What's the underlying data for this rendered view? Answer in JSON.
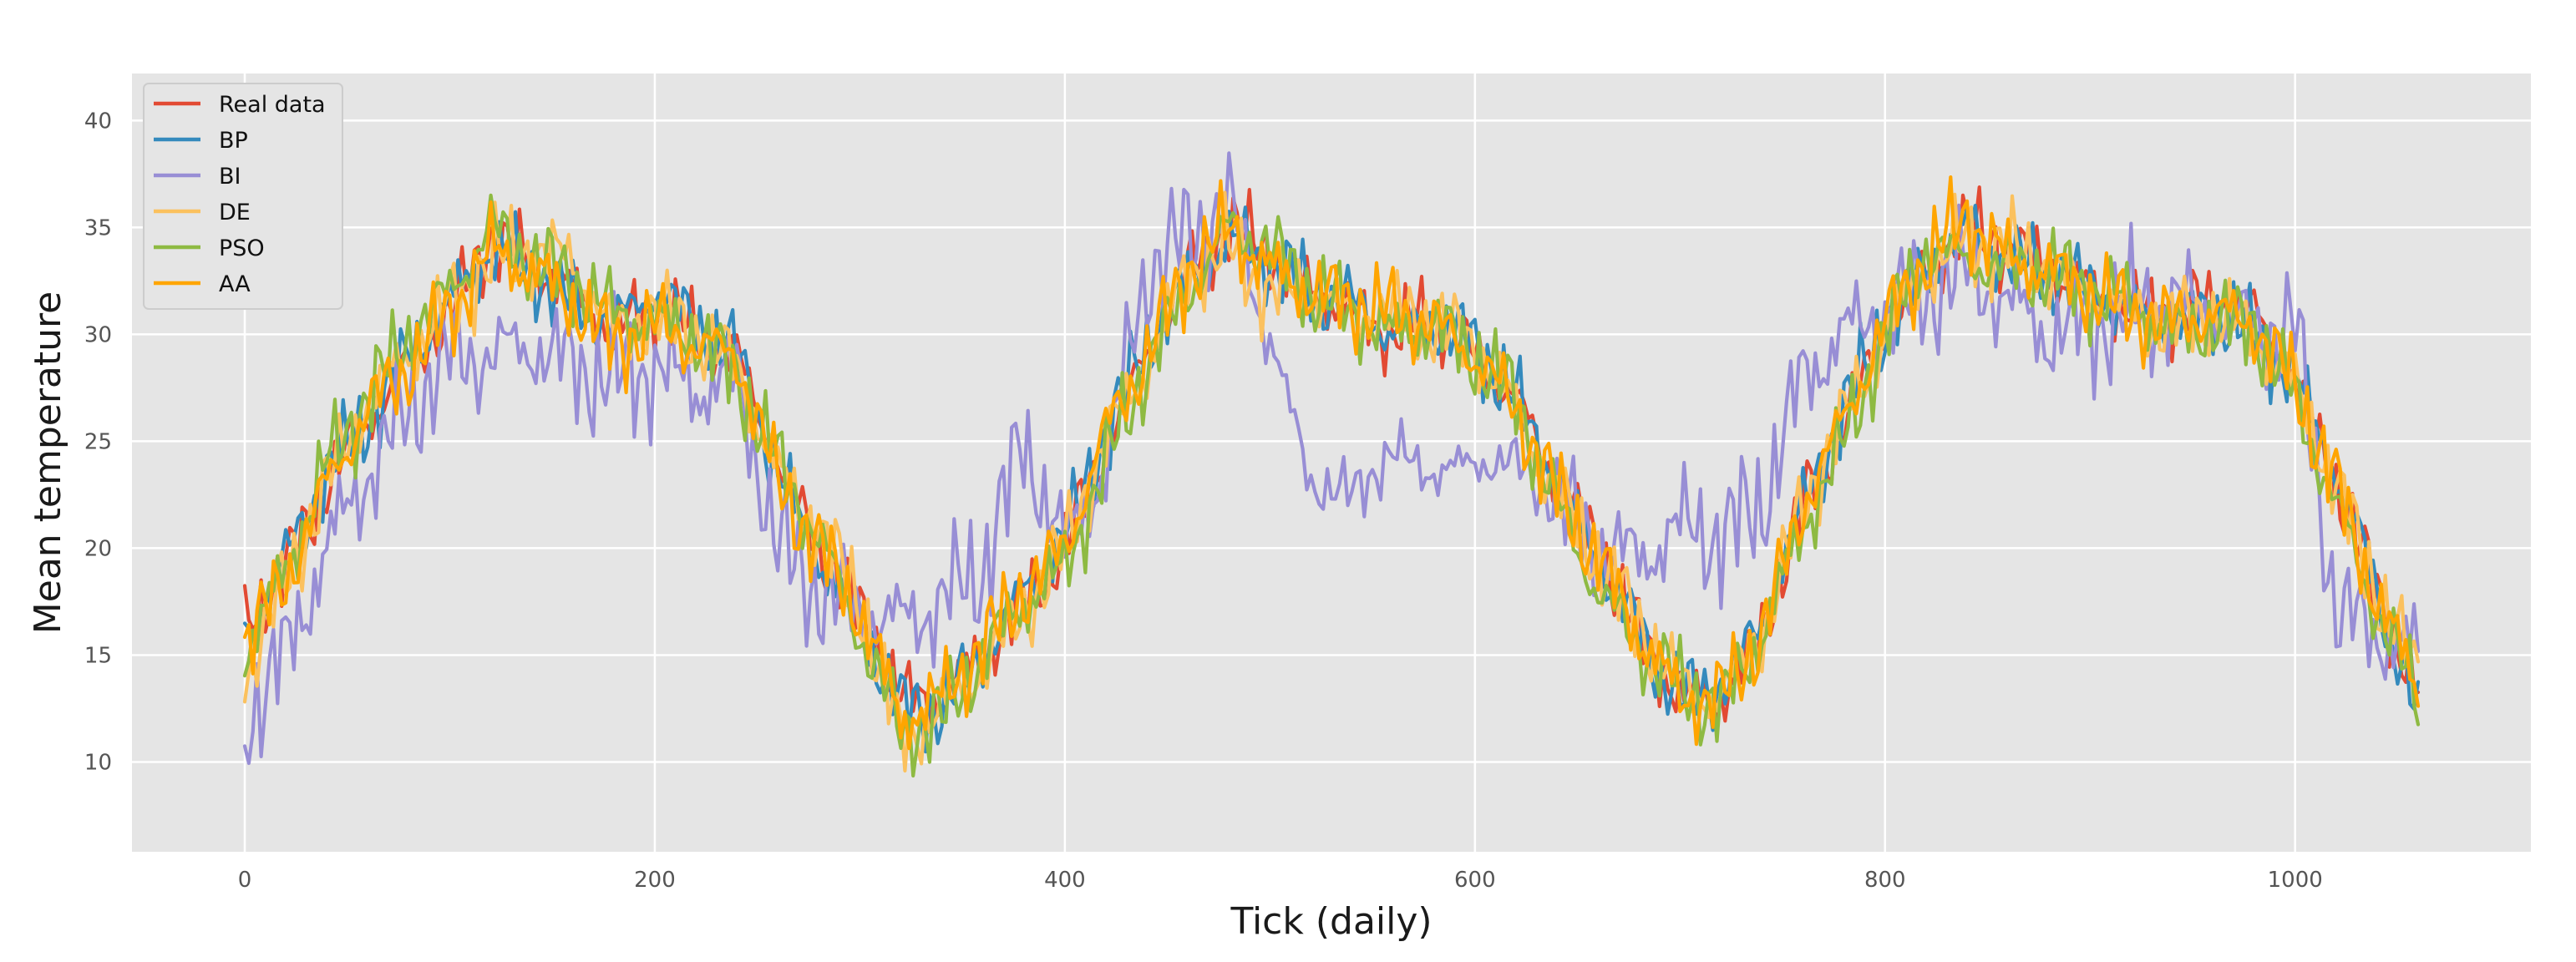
{
  "chart_data": {
    "type": "line",
    "title": "",
    "xlabel": "Tick (daily)",
    "ylabel": "Mean temperature",
    "xlim": [
      -55,
      1115
    ],
    "ylim": [
      5.8,
      42.2
    ],
    "xticks": [
      0,
      200,
      400,
      600,
      800,
      1000
    ],
    "yticks": [
      10,
      15,
      20,
      25,
      30,
      35,
      40
    ],
    "grid": true,
    "legend_position": "top-left",
    "background": "#e5e5e5",
    "x": [
      0,
      20,
      40,
      60,
      80,
      100,
      120,
      140,
      160,
      180,
      200,
      220,
      240,
      260,
      280,
      300,
      320,
      340,
      360,
      380,
      400,
      420,
      440,
      460,
      480,
      500,
      520,
      540,
      560,
      580,
      600,
      620,
      640,
      660,
      680,
      700,
      720,
      740,
      760,
      780,
      800,
      820,
      840,
      860,
      880,
      900,
      920,
      940,
      960,
      980,
      1000,
      1020,
      1040,
      1060
    ],
    "series": [
      {
        "name": "Real data",
        "color": "#e24a33",
        "values": [
          16.5,
          19,
          23,
          26,
          28.5,
          31,
          34.5,
          33.5,
          32,
          30,
          31.5,
          30,
          29,
          24,
          20,
          17,
          13,
          13,
          15,
          17.5,
          20,
          25,
          29,
          33,
          35,
          34,
          32,
          31,
          30,
          31,
          29,
          27,
          23,
          20,
          16,
          13,
          13,
          16,
          22,
          26,
          30,
          33,
          35,
          34,
          33,
          32,
          31,
          31,
          31.5,
          31,
          28,
          23,
          18,
          13
        ]
      },
      {
        "name": "BP",
        "color": "#348abd",
        "values": [
          16,
          19.5,
          23.5,
          26,
          29,
          31.5,
          34,
          33,
          31.5,
          30.5,
          32,
          30.5,
          29,
          23.5,
          19.5,
          16.5,
          12.5,
          12.5,
          15,
          18,
          20.5,
          25.5,
          29.5,
          32.5,
          34.5,
          33.5,
          32,
          31.5,
          30,
          30.5,
          29.5,
          27,
          23,
          19.5,
          16,
          13,
          13.5,
          16.5,
          22,
          26.5,
          30.5,
          33,
          35,
          33.5,
          33,
          32,
          31,
          30.5,
          31,
          30,
          28,
          23.5,
          18,
          12
        ]
      },
      {
        "name": "BI",
        "color": "#988ed5",
        "values": [
          12,
          15,
          20,
          23.5,
          26.5,
          29,
          29,
          29.5,
          28.5,
          28,
          28.5,
          27.5,
          28,
          20,
          18,
          17,
          16.5,
          17.5,
          19,
          25,
          20,
          24,
          33,
          34.5,
          36,
          30,
          23,
          22.5,
          24.5,
          23.5,
          24,
          24,
          22,
          20,
          19.5,
          21,
          20.5,
          22,
          28,
          30,
          31,
          32,
          33,
          31.5,
          30,
          30.5,
          31,
          31.5,
          31,
          30,
          30.5,
          17,
          16,
          15
        ]
      },
      {
        "name": "DE",
        "color": "#fbc15e",
        "values": [
          14,
          18.5,
          23,
          27,
          29,
          31.5,
          33.5,
          34,
          33.5,
          30,
          31,
          30,
          28.5,
          23.5,
          21,
          17.5,
          11,
          12.5,
          14.5,
          17,
          20,
          25,
          28.5,
          33,
          34,
          32,
          32,
          31,
          31,
          30.5,
          29.5,
          26.5,
          22.5,
          19.5,
          16.5,
          13.5,
          13,
          16,
          22,
          26,
          30,
          33,
          34.5,
          34,
          33,
          32,
          31,
          30.5,
          31,
          30,
          27.5,
          23,
          18,
          14
        ]
      },
      {
        "name": "PSO",
        "color": "#8eba42",
        "values": [
          15,
          19,
          24,
          27,
          30,
          32,
          35,
          33.5,
          32.5,
          31,
          30.5,
          30,
          28,
          24,
          20.5,
          16,
          11.5,
          12,
          15,
          17.5,
          19,
          24,
          28.5,
          32,
          35,
          34,
          32,
          31,
          30,
          30.5,
          29,
          27,
          22,
          18,
          15.5,
          13.5,
          12.5,
          16,
          21,
          25,
          30,
          34,
          33.5,
          33,
          33,
          32,
          31.5,
          30,
          30.5,
          30.5,
          27,
          22,
          17,
          13
        ]
      },
      {
        "name": "AA",
        "color": "#ffa500",
        "values": [
          15.5,
          18.5,
          23,
          26.5,
          28.5,
          31,
          34,
          33,
          31.5,
          29.5,
          30.5,
          29.5,
          29,
          23,
          20,
          17,
          12,
          13,
          15.5,
          18,
          20,
          25.5,
          29,
          33,
          35,
          33,
          32,
          31.5,
          31,
          30.5,
          29,
          26.5,
          22.5,
          19.5,
          16,
          13,
          13,
          16,
          22,
          26,
          30.5,
          33.5,
          35.5,
          33.5,
          33,
          32,
          31,
          30.5,
          31,
          30.5,
          27.5,
          23,
          17.5,
          13.5
        ]
      }
    ]
  }
}
